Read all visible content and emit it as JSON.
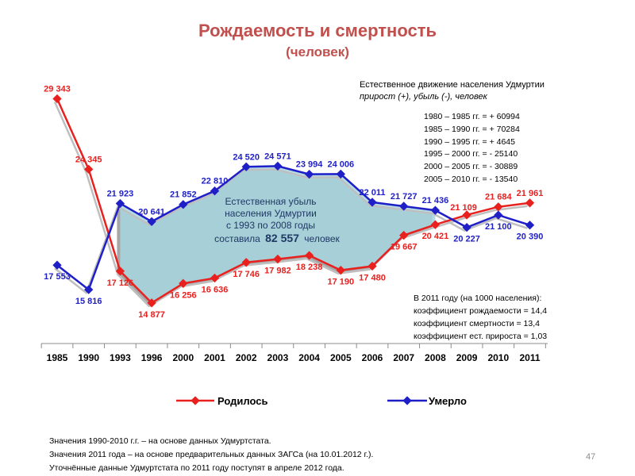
{
  "page": {
    "title": "Рождаемость и смертность",
    "subtitle": "(человек)",
    "page_number": "47"
  },
  "info": {
    "heading": "Естественное  движение населения Удмуртии",
    "subheading": "прирост  (+),  убыль  (-),  человек",
    "periods": [
      "1980 – 1985 гг. = + 60994",
      "1985 – 1990 гг. = + 70284",
      "1990 – 1995 гг. = +   4645",
      "1995 – 2000 гг. = -  25140",
      "2000 – 2005 гг. = -  30889",
      "2005 – 2010 гг. = -  13540"
    ]
  },
  "coefficients": {
    "heading": "В 2011 году (на 1000 населения):",
    "items": [
      "коэффициент рождаемости = 14,4",
      "коэффициент смертности    = 13,4",
      "коэффициент ест. прироста = 1,03"
    ]
  },
  "notes": [
    "Значения 1990-2010 г.г. – на основе данных Удмуртстата.",
    "Значения 2011 года – на основе предварительных данных ЗАГСа (на 10.01.2012 г.).",
    "Уточнённые  данные Удмуртстата по 2011 году поступят в апреле 2012 года."
  ],
  "annotation": {
    "line1": "Естественная убыль",
    "line2": "населения Удмуртии",
    "line3": "с 1993 по 2008 годы",
    "line4_prefix": "составила",
    "line4_value": "82 557",
    "line4_suffix": "человек"
  },
  "colors": {
    "births": "#e8201e",
    "deaths": "#1f1fc8",
    "gap_fill": "#a6d6e0",
    "shadow": "#a6a6a6",
    "title": "#c0504d"
  },
  "chart_data": {
    "type": "line",
    "categories": [
      "1985",
      "1990",
      "1993",
      "1996",
      "2000",
      "2001",
      "2002",
      "2003",
      "2004",
      "2005",
      "2006",
      "2007",
      "2008",
      "2009",
      "2010",
      "2011"
    ],
    "series": [
      {
        "name": "Родилось",
        "values": [
          29343,
          24345,
          17126,
          14877,
          16256,
          16636,
          17746,
          17982,
          18238,
          17190,
          17480,
          19667,
          20421,
          21109,
          21684,
          21961
        ],
        "labels": [
          "29 343",
          "24 345",
          "17 126",
          "14 877",
          "16 256",
          "16 636",
          "17 746",
          "17 982",
          "18 238",
          "17 190",
          "17 480",
          "19 667",
          "20 421",
          "21 109",
          "21 684",
          "21 961"
        ]
      },
      {
        "name": "Умерло",
        "values": [
          17553,
          15816,
          21923,
          20641,
          21852,
          22810,
          24520,
          24571,
          23994,
          24006,
          22011,
          21727,
          21436,
          20227,
          21100,
          20390
        ],
        "labels": [
          "17 553",
          "15 816",
          "21 923",
          "20 641",
          "21 852",
          "22 810",
          "24 520",
          "24 571",
          "23 994",
          "24 006",
          "22 011",
          "21 727",
          "21 436",
          "20 227",
          "21 100",
          "20 390"
        ]
      }
    ],
    "title": "Рождаемость и смертность",
    "xlabel": "",
    "ylabel": "человек",
    "ylim": [
      12000,
      31000
    ],
    "legend": [
      "Родилось",
      "Умерло"
    ]
  }
}
